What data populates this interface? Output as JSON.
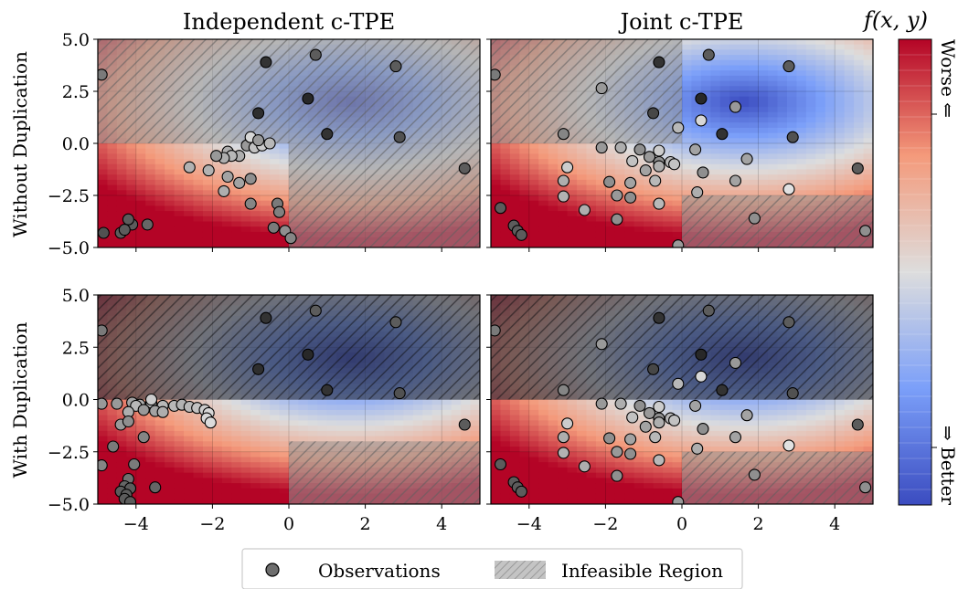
{
  "figure": {
    "col_titles": [
      "Independent c-TPE",
      "Joint c-TPE"
    ],
    "row_labels": [
      "Without Duplication",
      "With Duplication"
    ],
    "colorbar": {
      "label": "f(x, y)",
      "worse": "Worse ⇐",
      "better": "⇒ Better"
    },
    "legend": {
      "observations": "Observations",
      "infeasible": "Infeasible Region"
    },
    "colors": {
      "cmap_low": "#3b4cc0",
      "cmap_mid": "#dddddd",
      "cmap_high": "#b40426",
      "hatch": "#9a9a9a",
      "point_edge": "#000000"
    }
  },
  "chart_data": [
    {
      "type": "scatter",
      "panel": "top-left",
      "xlim": [
        -5,
        5
      ],
      "ylim": [
        -5,
        5
      ],
      "xticks": [
        -4,
        -2,
        0,
        2,
        4
      ],
      "yticks": [
        -5.0,
        -2.5,
        0.0,
        2.5,
        5.0
      ],
      "xtick_labels": [],
      "ytick_labels": [
        "−5.0",
        "−2.5",
        "0.0",
        "2.5",
        "5.0"
      ],
      "infeasible": [
        {
          "x": [
            -5,
            0
          ],
          "y": [
            0,
            5
          ]
        },
        {
          "x": [
            0,
            5
          ],
          "y": [
            0,
            5
          ]
        },
        {
          "x": [
            0,
            5
          ],
          "y": [
            -5,
            0
          ]
        }
      ],
      "dark_infeasible": false,
      "points": [
        {
          "x": -4.9,
          "y": 3.3,
          "c": 0.45
        },
        {
          "x": -0.6,
          "y": 3.9,
          "c": 0.1
        },
        {
          "x": 0.7,
          "y": 4.25,
          "c": 0.3
        },
        {
          "x": 2.8,
          "y": 3.7,
          "c": 0.3
        },
        {
          "x": 0.5,
          "y": 2.15,
          "c": 0.05
        },
        {
          "x": -0.8,
          "y": 1.45,
          "c": 0.08
        },
        {
          "x": 1.0,
          "y": 0.45,
          "c": 0.1
        },
        {
          "x": 2.9,
          "y": 0.3,
          "c": 0.25
        },
        {
          "x": 4.6,
          "y": -1.2,
          "c": 0.3
        },
        {
          "x": -1.6,
          "y": -0.4,
          "c": 0.7
        },
        {
          "x": -1.1,
          "y": -0.1,
          "c": 0.6
        },
        {
          "x": -1.0,
          "y": 0.3,
          "c": 0.9
        },
        {
          "x": -0.9,
          "y": -0.2,
          "c": 0.8
        },
        {
          "x": -0.7,
          "y": -0.1,
          "c": 0.85
        },
        {
          "x": -0.5,
          "y": 0.0,
          "c": 0.75
        },
        {
          "x": -0.8,
          "y": 0.15,
          "c": 0.6
        },
        {
          "x": -1.3,
          "y": -0.6,
          "c": 0.7
        },
        {
          "x": -1.5,
          "y": -0.6,
          "c": 0.75
        },
        {
          "x": -1.7,
          "y": -0.7,
          "c": 0.7
        },
        {
          "x": -1.9,
          "y": -0.6,
          "c": 0.6
        },
        {
          "x": -2.1,
          "y": -1.3,
          "c": 0.72
        },
        {
          "x": -1.6,
          "y": -1.6,
          "c": 0.65
        },
        {
          "x": -2.6,
          "y": -1.15,
          "c": 0.72
        },
        {
          "x": -1.7,
          "y": -2.3,
          "c": 0.7
        },
        {
          "x": -1.3,
          "y": -1.9,
          "c": 0.65
        },
        {
          "x": -1.0,
          "y": -1.7,
          "c": 0.55
        },
        {
          "x": -0.3,
          "y": -2.9,
          "c": 0.45
        },
        {
          "x": -0.25,
          "y": -3.3,
          "c": 0.48
        },
        {
          "x": -1.0,
          "y": -2.9,
          "c": 0.5
        },
        {
          "x": -0.4,
          "y": -4.05,
          "c": 0.45
        },
        {
          "x": -0.1,
          "y": -4.2,
          "c": 0.55
        },
        {
          "x": 0.05,
          "y": -4.55,
          "c": 0.5
        },
        {
          "x": -4.4,
          "y": -4.3,
          "c": 0.3
        },
        {
          "x": -4.1,
          "y": -3.9,
          "c": 0.3
        },
        {
          "x": -4.2,
          "y": -3.65,
          "c": 0.3
        },
        {
          "x": -3.7,
          "y": -3.9,
          "c": 0.35
        },
        {
          "x": -4.3,
          "y": -4.15,
          "c": 0.3
        },
        {
          "x": -4.85,
          "y": -4.3,
          "c": 0.25
        }
      ]
    },
    {
      "type": "scatter",
      "panel": "top-right",
      "xlim": [
        -5,
        5
      ],
      "ylim": [
        -5,
        5
      ],
      "xticks": [
        -4,
        -2,
        0,
        2,
        4
      ],
      "yticks": [
        -5.0,
        -2.5,
        0.0,
        2.5,
        5.0
      ],
      "xtick_labels": [],
      "ytick_labels": [],
      "infeasible": [
        {
          "x": [
            -5,
            0
          ],
          "y": [
            0,
            5
          ]
        },
        {
          "x": [
            0,
            5
          ],
          "y": [
            -5,
            -2.5
          ]
        }
      ],
      "dark_infeasible": false,
      "points": [
        {
          "x": -4.9,
          "y": 3.3,
          "c": 0.45
        },
        {
          "x": -0.6,
          "y": 3.9,
          "c": 0.1
        },
        {
          "x": 0.7,
          "y": 4.25,
          "c": 0.3
        },
        {
          "x": 2.8,
          "y": 3.7,
          "c": 0.3
        },
        {
          "x": 0.5,
          "y": 2.15,
          "c": 0.05
        },
        {
          "x": -2.1,
          "y": 2.65,
          "c": 0.6
        },
        {
          "x": -0.75,
          "y": 1.45,
          "c": 0.2
        },
        {
          "x": 1.4,
          "y": 1.75,
          "c": 0.6
        },
        {
          "x": 0.5,
          "y": 1.1,
          "c": 0.9
        },
        {
          "x": -0.1,
          "y": 0.75,
          "c": 0.75
        },
        {
          "x": 1.05,
          "y": 0.45,
          "c": 0.1
        },
        {
          "x": 2.9,
          "y": 0.3,
          "c": 0.25
        },
        {
          "x": -3.1,
          "y": 0.45,
          "c": 0.5
        },
        {
          "x": -2.1,
          "y": -0.2,
          "c": 0.6
        },
        {
          "x": -1.6,
          "y": -0.2,
          "c": 0.7
        },
        {
          "x": -1.1,
          "y": -0.3,
          "c": 0.55
        },
        {
          "x": -0.6,
          "y": -0.35,
          "c": 0.85
        },
        {
          "x": -1.3,
          "y": -0.85,
          "c": 0.8
        },
        {
          "x": -0.85,
          "y": -0.65,
          "c": 0.6
        },
        {
          "x": -0.6,
          "y": -0.9,
          "c": 0.55
        },
        {
          "x": -0.6,
          "y": -1.1,
          "c": 0.7
        },
        {
          "x": -0.3,
          "y": -0.9,
          "c": 0.75
        },
        {
          "x": -0.2,
          "y": -1.0,
          "c": 0.8
        },
        {
          "x": -0.95,
          "y": -1.3,
          "c": 0.65
        },
        {
          "x": -3.0,
          "y": -1.15,
          "c": 0.85
        },
        {
          "x": -1.9,
          "y": -1.85,
          "c": 0.55
        },
        {
          "x": -1.35,
          "y": -1.9,
          "c": 0.65
        },
        {
          "x": -0.7,
          "y": -1.8,
          "c": 0.75
        },
        {
          "x": 0.35,
          "y": -0.3,
          "c": 0.65
        },
        {
          "x": 0.55,
          "y": -1.4,
          "c": 0.55
        },
        {
          "x": 1.7,
          "y": -0.75,
          "c": 0.65
        },
        {
          "x": 1.4,
          "y": -1.8,
          "c": 0.65
        },
        {
          "x": 2.8,
          "y": -2.2,
          "c": 0.95
        },
        {
          "x": 0.4,
          "y": -2.35,
          "c": 0.7
        },
        {
          "x": -3.1,
          "y": -1.8,
          "c": 0.7
        },
        {
          "x": -3.1,
          "y": -2.55,
          "c": 0.72
        },
        {
          "x": -2.55,
          "y": -3.2,
          "c": 0.7
        },
        {
          "x": -1.7,
          "y": -2.5,
          "c": 0.6
        },
        {
          "x": -1.35,
          "y": -2.6,
          "c": 0.55
        },
        {
          "x": -0.6,
          "y": -2.9,
          "c": 0.75
        },
        {
          "x": -1.7,
          "y": -3.65,
          "c": 0.55
        },
        {
          "x": 1.9,
          "y": -3.6,
          "c": 0.55
        },
        {
          "x": 4.6,
          "y": -1.2,
          "c": 0.3
        },
        {
          "x": 4.8,
          "y": -4.2,
          "c": 0.55
        },
        {
          "x": -0.1,
          "y": -4.9,
          "c": 0.6
        },
        {
          "x": -4.75,
          "y": -3.1,
          "c": 0.3
        },
        {
          "x": -4.4,
          "y": -3.95,
          "c": 0.3
        },
        {
          "x": -4.3,
          "y": -4.2,
          "c": 0.3
        },
        {
          "x": -4.2,
          "y": -4.4,
          "c": 0.3
        }
      ]
    },
    {
      "type": "scatter",
      "panel": "bottom-left",
      "xlim": [
        -5,
        5
      ],
      "ylim": [
        -5,
        5
      ],
      "xticks": [
        -4,
        -2,
        0,
        2,
        4
      ],
      "yticks": [
        -5.0,
        -2.5,
        0.0,
        2.5,
        5.0
      ],
      "xtick_labels": [
        "−4",
        "−2",
        "0",
        "2",
        "4"
      ],
      "ytick_labels": [
        "−5.0",
        "−2.5",
        "0.0",
        "2.5",
        "5.0"
      ],
      "infeasible": [
        {
          "x": [
            -5,
            5
          ],
          "y": [
            0,
            5
          ]
        },
        {
          "x": [
            0,
            5
          ],
          "y": [
            -5,
            -2
          ]
        }
      ],
      "dark_infeasible": true,
      "points": [
        {
          "x": -4.9,
          "y": 3.3,
          "c": 0.45
        },
        {
          "x": -0.6,
          "y": 3.9,
          "c": 0.1
        },
        {
          "x": 0.7,
          "y": 4.25,
          "c": 0.3
        },
        {
          "x": 2.8,
          "y": 3.7,
          "c": 0.3
        },
        {
          "x": 0.5,
          "y": 2.15,
          "c": 0.05
        },
        {
          "x": -0.8,
          "y": 1.45,
          "c": 0.08
        },
        {
          "x": 1.0,
          "y": 0.45,
          "c": 0.1
        },
        {
          "x": 2.9,
          "y": 0.3,
          "c": 0.25
        },
        {
          "x": 4.6,
          "y": -1.2,
          "c": 0.3
        },
        {
          "x": -4.9,
          "y": -0.2,
          "c": 0.6
        },
        {
          "x": -4.5,
          "y": -0.2,
          "c": 0.6
        },
        {
          "x": -4.1,
          "y": -0.15,
          "c": 0.65
        },
        {
          "x": -3.9,
          "y": -0.25,
          "c": 0.7
        },
        {
          "x": -3.6,
          "y": -0.15,
          "c": 0.7
        },
        {
          "x": -3.3,
          "y": -0.3,
          "c": 0.75
        },
        {
          "x": -3.0,
          "y": -0.3,
          "c": 0.75
        },
        {
          "x": -2.8,
          "y": -0.25,
          "c": 0.72
        },
        {
          "x": -2.6,
          "y": -0.35,
          "c": 0.75
        },
        {
          "x": -2.4,
          "y": -0.4,
          "c": 0.8
        },
        {
          "x": -2.2,
          "y": -0.5,
          "c": 0.85
        },
        {
          "x": -2.1,
          "y": -0.65,
          "c": 0.9
        },
        {
          "x": -2.15,
          "y": -0.9,
          "c": 0.9
        },
        {
          "x": -2.05,
          "y": -1.1,
          "c": 0.92
        },
        {
          "x": -3.6,
          "y": 0.0,
          "c": 0.85
        },
        {
          "x": -4.0,
          "y": -0.3,
          "c": 0.75
        },
        {
          "x": -3.8,
          "y": -0.5,
          "c": 0.6
        },
        {
          "x": -4.2,
          "y": -0.6,
          "c": 0.7
        },
        {
          "x": -3.5,
          "y": -0.55,
          "c": 0.65
        },
        {
          "x": -3.3,
          "y": -0.6,
          "c": 0.7
        },
        {
          "x": -4.4,
          "y": -1.2,
          "c": 0.6
        },
        {
          "x": -4.2,
          "y": -1.05,
          "c": 0.55
        },
        {
          "x": -3.8,
          "y": -1.8,
          "c": 0.5
        },
        {
          "x": -4.6,
          "y": -2.25,
          "c": 0.45
        },
        {
          "x": -4.05,
          "y": -3.1,
          "c": 0.45
        },
        {
          "x": -4.9,
          "y": -3.15,
          "c": 0.5
        },
        {
          "x": -4.2,
          "y": -3.8,
          "c": 0.4
        },
        {
          "x": -4.3,
          "y": -4.15,
          "c": 0.35
        },
        {
          "x": -4.15,
          "y": -4.25,
          "c": 0.3
        },
        {
          "x": -4.4,
          "y": -4.4,
          "c": 0.3
        },
        {
          "x": -4.25,
          "y": -4.55,
          "c": 0.3
        },
        {
          "x": -4.3,
          "y": -4.75,
          "c": 0.3
        },
        {
          "x": -4.15,
          "y": -4.9,
          "c": 0.3
        },
        {
          "x": -3.5,
          "y": -4.2,
          "c": 0.35
        }
      ]
    },
    {
      "type": "scatter",
      "panel": "bottom-right",
      "xlim": [
        -5,
        5
      ],
      "ylim": [
        -5,
        5
      ],
      "xticks": [
        -4,
        -2,
        0,
        2,
        4
      ],
      "yticks": [
        -5.0,
        -2.5,
        0.0,
        2.5,
        5.0
      ],
      "xtick_labels": [
        "−4",
        "−2",
        "0",
        "2",
        "4"
      ],
      "ytick_labels": [],
      "infeasible": [
        {
          "x": [
            -5,
            5
          ],
          "y": [
            0,
            5
          ]
        },
        {
          "x": [
            0,
            5
          ],
          "y": [
            -5,
            -2.5
          ]
        }
      ],
      "dark_infeasible": true,
      "points": [
        {
          "x": -4.9,
          "y": 3.3,
          "c": 0.45
        },
        {
          "x": -0.6,
          "y": 3.9,
          "c": 0.1
        },
        {
          "x": 0.7,
          "y": 4.25,
          "c": 0.3
        },
        {
          "x": 2.8,
          "y": 3.7,
          "c": 0.3
        },
        {
          "x": 0.5,
          "y": 2.15,
          "c": 0.05
        },
        {
          "x": -2.1,
          "y": 2.65,
          "c": 0.6
        },
        {
          "x": -0.75,
          "y": 1.45,
          "c": 0.2
        },
        {
          "x": 1.4,
          "y": 1.75,
          "c": 0.6
        },
        {
          "x": 0.5,
          "y": 1.1,
          "c": 0.9
        },
        {
          "x": -0.1,
          "y": 0.75,
          "c": 0.75
        },
        {
          "x": 1.05,
          "y": 0.45,
          "c": 0.1
        },
        {
          "x": 2.9,
          "y": 0.3,
          "c": 0.25
        },
        {
          "x": -3.1,
          "y": 0.45,
          "c": 0.5
        },
        {
          "x": -2.1,
          "y": -0.2,
          "c": 0.6
        },
        {
          "x": -1.6,
          "y": -0.2,
          "c": 0.7
        },
        {
          "x": -1.1,
          "y": -0.3,
          "c": 0.55
        },
        {
          "x": -0.6,
          "y": -0.35,
          "c": 0.85
        },
        {
          "x": -1.3,
          "y": -0.85,
          "c": 0.8
        },
        {
          "x": -0.85,
          "y": -0.65,
          "c": 0.6
        },
        {
          "x": -0.6,
          "y": -0.9,
          "c": 0.55
        },
        {
          "x": -0.6,
          "y": -1.1,
          "c": 0.7
        },
        {
          "x": -0.3,
          "y": -0.9,
          "c": 0.75
        },
        {
          "x": -0.2,
          "y": -1.0,
          "c": 0.8
        },
        {
          "x": -0.95,
          "y": -1.3,
          "c": 0.65
        },
        {
          "x": -3.0,
          "y": -1.15,
          "c": 0.85
        },
        {
          "x": -1.9,
          "y": -1.85,
          "c": 0.55
        },
        {
          "x": -1.35,
          "y": -1.9,
          "c": 0.65
        },
        {
          "x": -0.7,
          "y": -1.8,
          "c": 0.75
        },
        {
          "x": 0.35,
          "y": -0.3,
          "c": 0.65
        },
        {
          "x": 0.55,
          "y": -1.4,
          "c": 0.55
        },
        {
          "x": 1.7,
          "y": -0.75,
          "c": 0.65
        },
        {
          "x": 1.4,
          "y": -1.8,
          "c": 0.65
        },
        {
          "x": 2.8,
          "y": -2.2,
          "c": 0.95
        },
        {
          "x": 0.4,
          "y": -2.35,
          "c": 0.7
        },
        {
          "x": -3.1,
          "y": -1.8,
          "c": 0.7
        },
        {
          "x": -3.1,
          "y": -2.55,
          "c": 0.72
        },
        {
          "x": -2.55,
          "y": -3.2,
          "c": 0.7
        },
        {
          "x": -1.7,
          "y": -2.5,
          "c": 0.6
        },
        {
          "x": -1.35,
          "y": -2.6,
          "c": 0.55
        },
        {
          "x": -0.6,
          "y": -2.9,
          "c": 0.75
        },
        {
          "x": -1.7,
          "y": -3.65,
          "c": 0.55
        },
        {
          "x": 1.9,
          "y": -3.6,
          "c": 0.55
        },
        {
          "x": 4.6,
          "y": -1.2,
          "c": 0.3
        },
        {
          "x": 4.8,
          "y": -4.2,
          "c": 0.55
        },
        {
          "x": -0.1,
          "y": -4.9,
          "c": 0.6
        },
        {
          "x": -4.75,
          "y": -3.1,
          "c": 0.3
        },
        {
          "x": -4.4,
          "y": -3.95,
          "c": 0.3
        },
        {
          "x": -4.3,
          "y": -4.2,
          "c": 0.3
        },
        {
          "x": -4.2,
          "y": -4.4,
          "c": 0.3
        }
      ]
    }
  ]
}
